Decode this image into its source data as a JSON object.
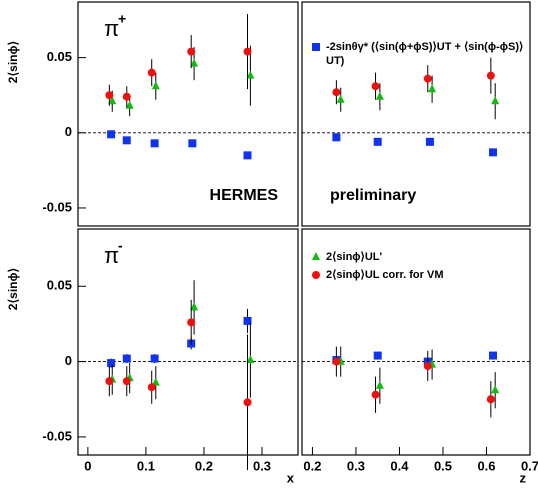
{
  "chart_data": [
    {
      "type": "scatter",
      "ylabel": "2⟨sinϕ⟩",
      "annotation": "π",
      "annotation_sup": "+",
      "tag": "HERMES",
      "tag_color": "#ee1111",
      "tag_corner": "lower right",
      "xlim": [
        -0.017,
        0.362
      ],
      "ylim": [
        -0.062,
        0.087
      ],
      "yticks": [
        -0.05,
        0,
        0.05
      ],
      "zero_line": true,
      "series": [
        {
          "marker": "square",
          "color": "#1133ee",
          "x": [
            0.04,
            0.067,
            0.115,
            0.18,
            0.275
          ],
          "values": [
            -0.001,
            -0.005,
            -0.007,
            -0.007,
            -0.015
          ]
        },
        {
          "marker": "triangle",
          "color": "#11bb11",
          "x": [
            0.042,
            0.072,
            0.117,
            0.183,
            0.28
          ],
          "values": [
            0.021,
            0.018,
            0.031,
            0.046,
            0.038
          ],
          "errors": [
            0.007,
            0.007,
            0.009,
            0.011,
            0.02
          ]
        },
        {
          "marker": "circle",
          "color": "#ee1111",
          "x": [
            0.037,
            0.067,
            0.11,
            0.178,
            0.275
          ],
          "values": [
            0.025,
            0.024,
            0.04,
            0.054,
            0.054
          ],
          "errors": [
            0.007,
            0.007,
            0.009,
            0.011,
            0.025
          ]
        }
      ]
    },
    {
      "type": "scatter",
      "tag": "preliminary",
      "tag_color": "#ee1111",
      "tag_corner": "lower left",
      "xlim": [
        0.176,
        0.7
      ],
      "ylim": [
        -0.062,
        0.087
      ],
      "zero_line": true,
      "series": [
        {
          "name": "-2sinθγ* (⟨sin(ϕ+ϕS)⟩UT + ⟨sin(ϕ-ϕS)⟩UT)",
          "marker": "square",
          "color": "#1133ee",
          "x": [
            0.255,
            0.35,
            0.47,
            0.615
          ],
          "values": [
            -0.003,
            -0.006,
            -0.006,
            -0.013
          ]
        },
        {
          "marker": "triangle",
          "color": "#11bb11",
          "x": [
            0.265,
            0.355,
            0.475,
            0.62
          ],
          "values": [
            0.022,
            0.024,
            0.029,
            0.021
          ],
          "errors": [
            0.008,
            0.009,
            0.009,
            0.012
          ]
        },
        {
          "marker": "circle",
          "color": "#ee1111",
          "x": [
            0.255,
            0.345,
            0.465,
            0.61
          ],
          "values": [
            0.027,
            0.031,
            0.036,
            0.038
          ],
          "errors": [
            0.008,
            0.009,
            0.009,
            0.012
          ]
        }
      ]
    },
    {
      "type": "scatter",
      "ylabel": "2⟨sinϕ⟩",
      "annotation": "π",
      "annotation_sup": "-",
      "xlabel": "x",
      "xlim": [
        -0.017,
        0.362
      ],
      "ylim": [
        -0.062,
        0.088
      ],
      "xticks": [
        0,
        0.1,
        0.2,
        0.3
      ],
      "yticks": [
        -0.05,
        0,
        0.05
      ],
      "zero_line": true,
      "series": [
        {
          "marker": "square",
          "color": "#1133ee",
          "x": [
            0.04,
            0.067,
            0.115,
            0.178,
            0.275
          ],
          "values": [
            -0.001,
            0.002,
            0.002,
            0.012,
            0.027
          ],
          "errors": [
            0.003,
            0.003,
            0.003,
            0.004,
            0.008
          ]
        },
        {
          "marker": "triangle",
          "color": "#11bb11",
          "x": [
            0.042,
            0.072,
            0.117,
            0.183,
            0.28
          ],
          "values": [
            -0.012,
            -0.011,
            -0.014,
            0.036,
            0.001
          ],
          "errors": [
            0.01,
            0.01,
            0.011,
            0.018,
            0.025
          ]
        },
        {
          "marker": "circle",
          "color": "#ee1111",
          "x": [
            0.037,
            0.067,
            0.11,
            0.178,
            0.275
          ],
          "values": [
            -0.013,
            -0.013,
            -0.017,
            0.026,
            -0.027
          ],
          "errors": [
            0.01,
            0.01,
            0.011,
            0.015,
            0.045
          ]
        }
      ]
    },
    {
      "type": "scatter",
      "xlabel": "z",
      "xlim": [
        0.176,
        0.7
      ],
      "ylim": [
        -0.062,
        0.088
      ],
      "xticks": [
        0.2,
        0.3,
        0.4,
        0.5,
        0.6,
        0.7
      ],
      "zero_line": true,
      "series": [
        {
          "marker": "square",
          "color": "#1133ee",
          "x": [
            0.255,
            0.35,
            0.465,
            0.615
          ],
          "values": [
            0.001,
            0.004,
            0.0,
            0.004
          ]
        },
        {
          "name": "2⟨sinϕ⟩UL'",
          "marker": "triangle",
          "color": "#11bb11",
          "x": [
            0.265,
            0.355,
            0.475,
            0.62
          ],
          "values": [
            0.0,
            -0.016,
            -0.002,
            -0.019
          ],
          "errors": [
            0.01,
            0.012,
            0.01,
            0.012
          ]
        },
        {
          "name": "2⟨sinϕ⟩UL corr. for VM",
          "marker": "circle",
          "color": "#ee1111",
          "x": [
            0.255,
            0.345,
            0.465,
            0.61
          ],
          "values": [
            0.0,
            -0.022,
            -0.003,
            -0.025
          ],
          "errors": [
            0.01,
            0.012,
            0.01,
            0.012
          ]
        }
      ]
    }
  ]
}
